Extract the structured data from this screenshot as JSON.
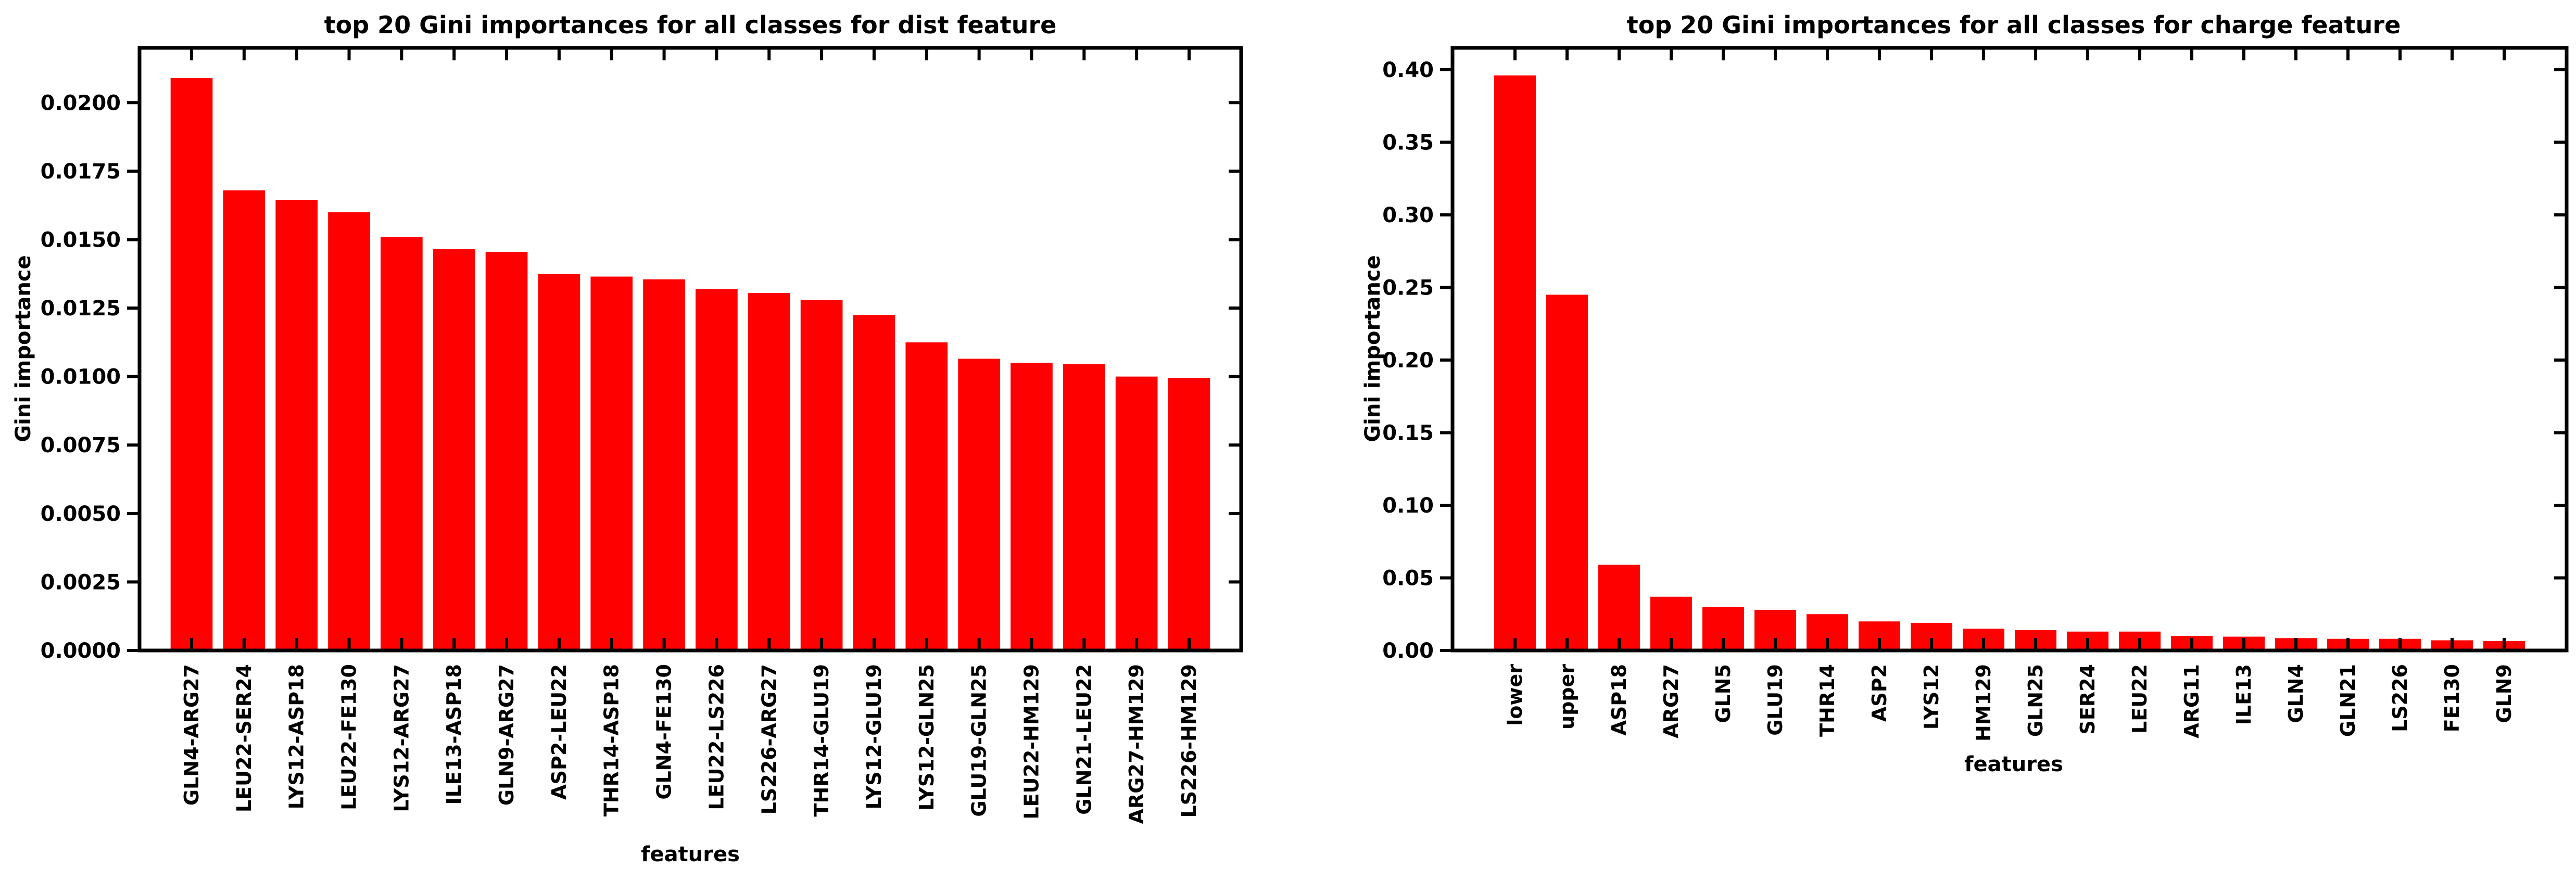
{
  "bar_color": "#ff0000",
  "chart_data": [
    {
      "type": "bar",
      "title": "top 20 Gini importances for all classes for dist feature",
      "xlabel": "features",
      "ylabel": "Gini importance",
      "ylim": [
        0,
        0.022
      ],
      "yticks": [
        "0.0000",
        "0.0025",
        "0.0050",
        "0.0075",
        "0.0100",
        "0.0125",
        "0.0150",
        "0.0175",
        "0.0200"
      ],
      "grid": false,
      "categories": [
        "GLN4-ARG27",
        "LEU22-SER24",
        "LYS12-ASP18",
        "LEU22-FE130",
        "LYS12-ARG27",
        "ILE13-ASP18",
        "GLN9-ARG27",
        "ASP2-LEU22",
        "THR14-ASP18",
        "GLN4-FE130",
        "LEU22-LS226",
        "LS226-ARG27",
        "THR14-GLU19",
        "LYS12-GLU19",
        "LYS12-GLN25",
        "GLU19-GLN25",
        "LEU22-HM129",
        "GLN21-LEU22",
        "ARG27-HM129",
        "LS226-HM129"
      ],
      "values": [
        0.0209,
        0.0168,
        0.01645,
        0.016,
        0.0151,
        0.01465,
        0.01455,
        0.01375,
        0.01365,
        0.01355,
        0.0132,
        0.01305,
        0.0128,
        0.01225,
        0.01125,
        0.01065,
        0.0105,
        0.01045,
        0.01,
        0.00995
      ]
    },
    {
      "type": "bar",
      "title": "top 20 Gini importances for all classes for charge feature",
      "xlabel": "features",
      "ylabel": "Gini importance",
      "ylim": [
        0,
        0.415
      ],
      "yticks": [
        "0.00",
        "0.05",
        "0.10",
        "0.15",
        "0.20",
        "0.25",
        "0.30",
        "0.35",
        "0.40"
      ],
      "grid": false,
      "categories": [
        "lower",
        "upper",
        "ASP18",
        "ARG27",
        "GLN5",
        "GLU19",
        "THR14",
        "ASP2",
        "LYS12",
        "HM129",
        "GLN25",
        "SER24",
        "LEU22",
        "ARG11",
        "ILE13",
        "GLN4",
        "GLN21",
        "LS226",
        "FE130",
        "GLN9"
      ],
      "values": [
        0.396,
        0.245,
        0.059,
        0.037,
        0.03,
        0.028,
        0.025,
        0.02,
        0.019,
        0.015,
        0.014,
        0.013,
        0.013,
        0.01,
        0.0095,
        0.0085,
        0.008,
        0.008,
        0.007,
        0.0065
      ]
    }
  ]
}
